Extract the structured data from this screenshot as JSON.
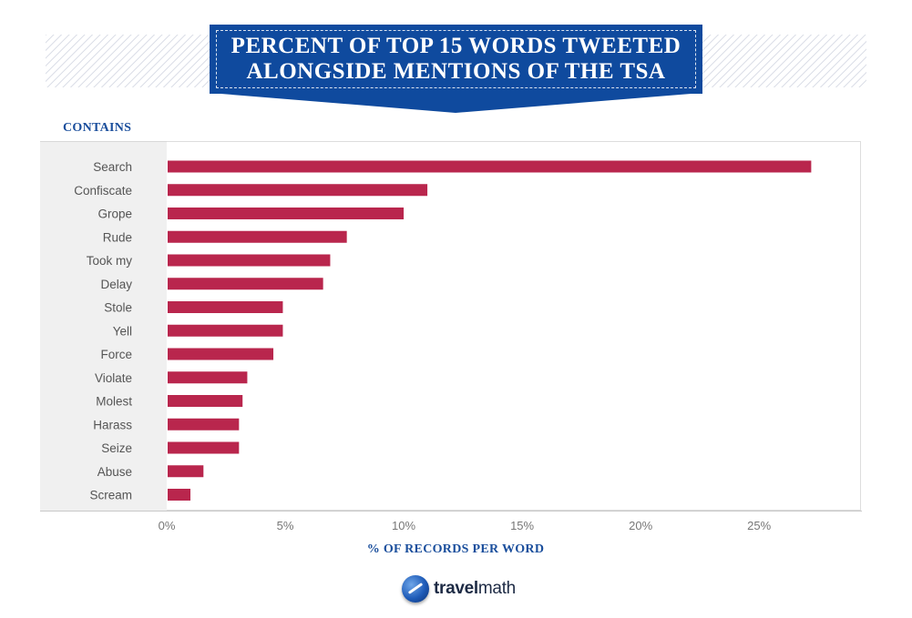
{
  "title": "PERCENT OF TOP 15 WORDS TWEETED\nALONGSIDE MENTIONS OF THE TSA",
  "category_header": "CONTAINS",
  "logo": {
    "bold": "travel",
    "light": "math"
  },
  "colors": {
    "bar": "#b9264d",
    "accent": "#1a4e9c",
    "banner": "#0f4a9e"
  },
  "chart_data": {
    "type": "bar",
    "orientation": "horizontal",
    "title": "PERCENT OF TOP 15 WORDS TWEETED ALONGSIDE MENTIONS OF THE TSA",
    "xlabel": "% OF RECORDS PER WORD",
    "ylabel": "CONTAINS",
    "categories": [
      "Search",
      "Confiscate",
      "Grope",
      "Rude",
      "Took my",
      "Delay",
      "Stole",
      "Yell",
      "Force",
      "Violate",
      "Molest",
      "Harass",
      "Seize",
      "Abuse",
      "Scream"
    ],
    "values": [
      27.2,
      11.0,
      10.0,
      7.6,
      6.9,
      6.6,
      4.9,
      4.9,
      4.5,
      3.4,
      3.2,
      3.05,
      3.05,
      1.55,
      1.0
    ],
    "xlim": [
      0,
      29.3
    ],
    "xticks": [
      0,
      5,
      10,
      15,
      20,
      25
    ],
    "xtick_labels": [
      "0%",
      "5%",
      "10%",
      "15%",
      "20%",
      "25%"
    ],
    "grid": false,
    "legend": "none"
  }
}
